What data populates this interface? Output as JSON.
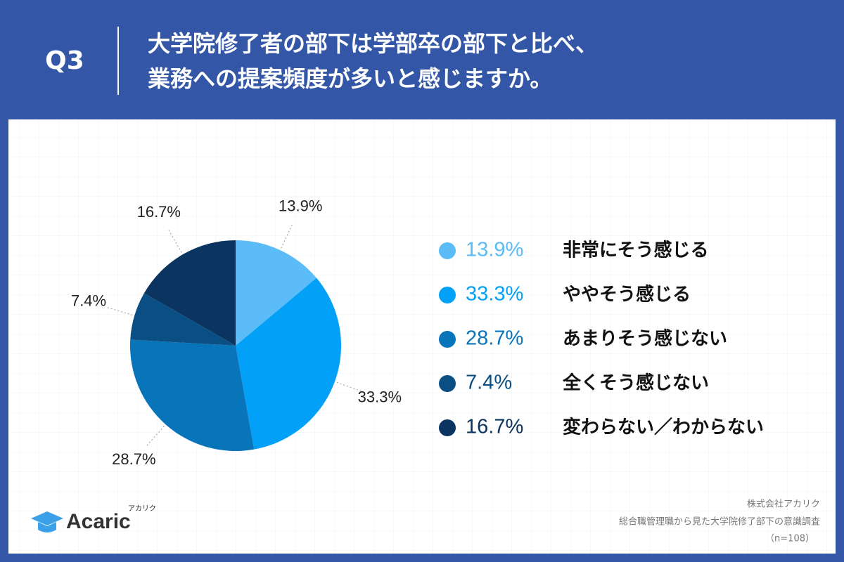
{
  "chart_data": {
    "type": "pie",
    "question": "Q3",
    "title": [
      "大学院修了者の部下は学部卒の部下と比べ、",
      "業務への提案頻度が多いと感じますか。"
    ],
    "categories": [
      "非常にそう感じる",
      "ややそう感じる",
      "あまりそう感じない",
      "全くそう感じない",
      "変わらない／わからない"
    ],
    "values": [
      13.9,
      33.3,
      28.7,
      7.4,
      16.7
    ],
    "value_labels": [
      "13.9%",
      "33.3%",
      "28.7%",
      "7.4%",
      "16.7%"
    ],
    "colors": [
      "#5bbcf8",
      "#03a0f7",
      "#0874b9",
      "#0a4f83",
      "#0c3460"
    ],
    "source": [
      "株式会社アカリク",
      "総合職管理職から見た大学院修了部下の意識調査",
      "（n=108）"
    ],
    "logo": {
      "name": "Acaric",
      "kana": "アカリク"
    }
  }
}
